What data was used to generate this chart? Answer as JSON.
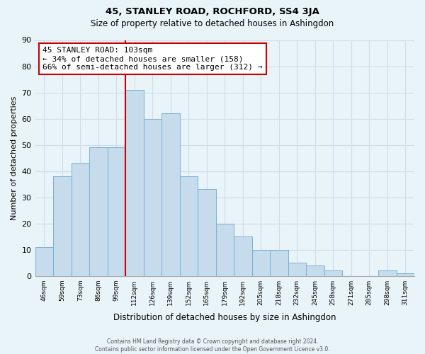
{
  "title": "45, STANLEY ROAD, ROCHFORD, SS4 3JA",
  "subtitle": "Size of property relative to detached houses in Ashingdon",
  "xlabel": "Distribution of detached houses by size in Ashingdon",
  "ylabel": "Number of detached properties",
  "categories": [
    "46sqm",
    "59sqm",
    "73sqm",
    "86sqm",
    "99sqm",
    "112sqm",
    "126sqm",
    "139sqm",
    "152sqm",
    "165sqm",
    "179sqm",
    "192sqm",
    "205sqm",
    "218sqm",
    "232sqm",
    "245sqm",
    "258sqm",
    "271sqm",
    "285sqm",
    "298sqm",
    "311sqm"
  ],
  "values": [
    11,
    38,
    43,
    49,
    49,
    71,
    60,
    62,
    38,
    33,
    20,
    15,
    10,
    10,
    5,
    4,
    2,
    0,
    0,
    2,
    1
  ],
  "bar_color": "#c6dcec",
  "bar_edge_color": "#7bafd4",
  "vline_color": "#cc0000",
  "vline_pos": 5,
  "annotation_text": "45 STANLEY ROAD: 103sqm\n← 34% of detached houses are smaller (158)\n66% of semi-detached houses are larger (312) →",
  "annotation_box_color": "#ffffff",
  "annotation_box_edge": "#cc0000",
  "ylim": [
    0,
    90
  ],
  "yticks": [
    0,
    10,
    20,
    30,
    40,
    50,
    60,
    70,
    80,
    90
  ],
  "footer": "Contains HM Land Registry data © Crown copyright and database right 2024.\nContains public sector information licensed under the Open Government Licence v3.0.",
  "bg_color": "#e8f4f8",
  "grid_color": "#d0dde8"
}
